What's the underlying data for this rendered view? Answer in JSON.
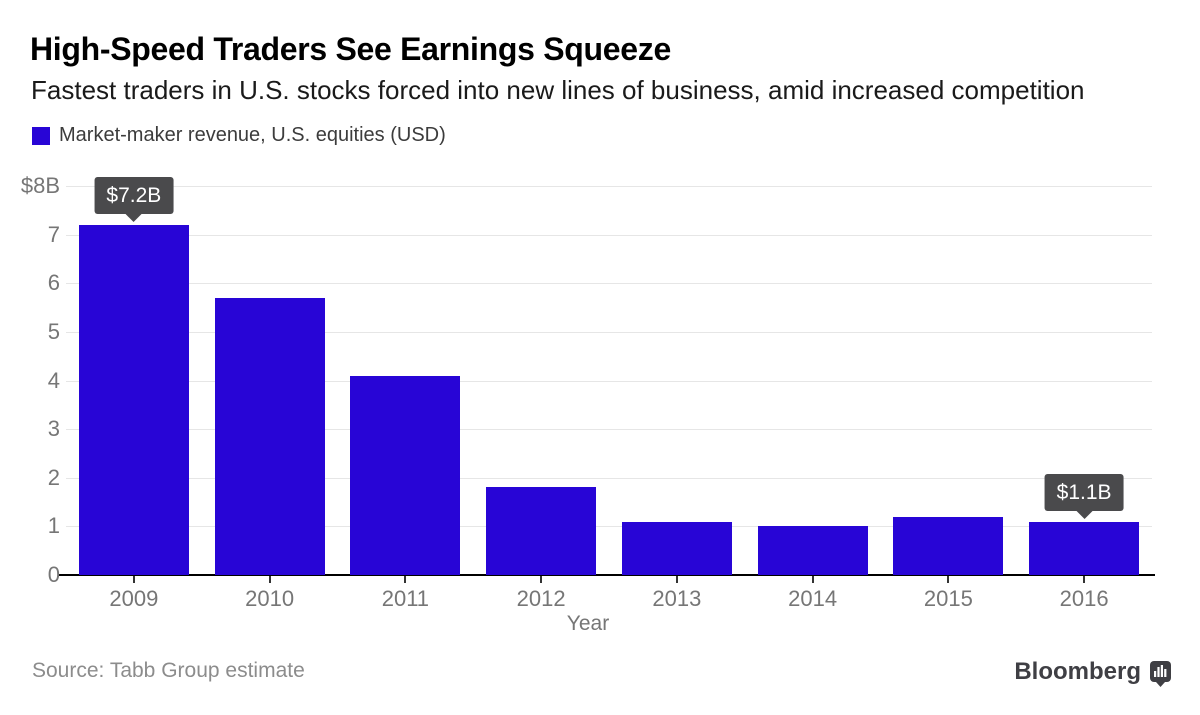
{
  "header": {
    "title": "High-Speed Traders See Earnings Squeeze",
    "subtitle": "Fastest traders in U.S. stocks forced into new lines of business, amid increased competition",
    "legend_label": "Market-maker revenue, U.S. equities (USD)"
  },
  "chart_data": {
    "type": "bar",
    "title": "Market-maker revenue, U.S. equities (USD)",
    "categories": [
      "2009",
      "2010",
      "2011",
      "2012",
      "2013",
      "2014",
      "2015",
      "2016"
    ],
    "values": [
      7.2,
      5.7,
      4.1,
      1.8,
      1.1,
      1.0,
      1.2,
      1.1
    ],
    "xlabel": "Year",
    "ylabel": "",
    "ylim": [
      0,
      8
    ],
    "grid": true,
    "legend_position": "top-left",
    "yticks": [
      {
        "value": 8,
        "label": "$8B"
      },
      {
        "value": 7,
        "label": "7"
      },
      {
        "value": 6,
        "label": "6"
      },
      {
        "value": 5,
        "label": "5"
      },
      {
        "value": 4,
        "label": "4"
      },
      {
        "value": 3,
        "label": "3"
      },
      {
        "value": 2,
        "label": "2"
      },
      {
        "value": 1,
        "label": "1"
      },
      {
        "value": 0,
        "label": "0"
      }
    ],
    "annotations": [
      {
        "category": "2009",
        "text": "$7.2B"
      },
      {
        "category": "2016",
        "text": "$1.1B"
      }
    ]
  },
  "footer": {
    "source": "Source: Tabb Group estimate",
    "brand": "Bloomberg",
    "brand_icon": "bloomberg-chart-bubble-icon"
  },
  "colors": {
    "bar": "#2805d6",
    "callout_bg": "#4a4a4c",
    "gridline": "#e6e6e6",
    "baseline": "#000000",
    "axis_text": "#767676"
  }
}
